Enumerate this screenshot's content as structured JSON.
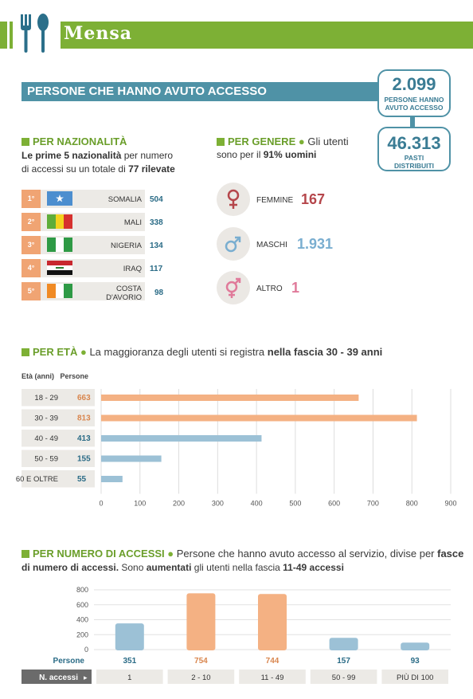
{
  "header": {
    "title": "Mensa"
  },
  "access": {
    "title": "PERSONE CHE HANNO AVUTO ACCESSO",
    "people_count": "2.099",
    "people_label_1": "PERSONE HANNO",
    "people_label_2": "AVUTO ACCESSO",
    "meals_count": "46.313",
    "meals_label_1": "PASTI",
    "meals_label_2": "DISTRIBUITI"
  },
  "nationality": {
    "title": "PER NAZIONALITÀ",
    "desc_1": "Le prime 5 nazionalità",
    "desc_2": " per numero",
    "desc_3": "di accessi su un totale di ",
    "desc_4": "77 rilevate",
    "rows": [
      {
        "rank": "1°",
        "name": "SOMALIA",
        "value": "504",
        "flag": "somalia-flag-icon"
      },
      {
        "rank": "2°",
        "name": "MALI",
        "value": "338",
        "flag": "mali-flag-icon"
      },
      {
        "rank": "3°",
        "name": "NIGERIA",
        "value": "134",
        "flag": "nigeria-flag-icon"
      },
      {
        "rank": "4°",
        "name": "IRAQ",
        "value": "117",
        "flag": "iraq-flag-icon"
      },
      {
        "rank": "5°",
        "name_1": "COSTA",
        "name_2": "D'AVORIO",
        "value": "98",
        "flag": "ivory-coast-flag-icon"
      }
    ]
  },
  "gender": {
    "title": "PER GENERE",
    "desc_1": "Gli utenti",
    "desc_2": "sono per il ",
    "desc_3": "91% uomini",
    "rows": [
      {
        "label": "FEMMINE",
        "value": "167",
        "color": "#b5464b",
        "icon": "female-icon"
      },
      {
        "label": "MASCHI",
        "value": "1.931",
        "color": "#7aaed0",
        "icon": "male-icon"
      },
      {
        "label": "ALTRO",
        "value": "1",
        "color": "#e07a9a",
        "icon": "other-gender-icon"
      }
    ]
  },
  "age": {
    "title": "PER ETÀ",
    "desc_1": "La maggioranza degli utenti si registra ",
    "desc_2": "nella fascia 30 - 39 anni",
    "col_age": "Età (anni)",
    "col_people": "Persone"
  },
  "accesses": {
    "title": "PER NUMERO DI ACCESSI",
    "desc_1": "Persone che hanno avuto accesso al servizio, divise per ",
    "desc_2": "fasce",
    "desc_3": "di numero di accessi.",
    "desc_4": " Sono ",
    "desc_5": "aumentati",
    "desc_6": " gli utenti nella fascia ",
    "desc_7": "11-49 accessi",
    "people_label": "Persone",
    "n_label": "N. accessi"
  },
  "chart_data": [
    {
      "type": "bar",
      "orientation": "horizontal",
      "categories": [
        "18 - 29",
        "30 - 39",
        "40 - 49",
        "50 - 59",
        "60 E OLTRE"
      ],
      "values": [
        663,
        813,
        413,
        155,
        55
      ],
      "xlim": [
        0,
        900
      ],
      "ticks": [
        0,
        100,
        200,
        300,
        400,
        500,
        600,
        700,
        800,
        900
      ],
      "colors": [
        "#f4b183",
        "#f4b183",
        "#9cc1d6",
        "#9cc1d6",
        "#9cc1d6"
      ],
      "value_colors": [
        "#d9864e",
        "#d9864e",
        "#2a6b86",
        "#2a6b86",
        "#2a6b86"
      ]
    },
    {
      "type": "bar",
      "orientation": "vertical",
      "categories": [
        "1",
        "2 - 10",
        "11 - 49",
        "50 - 99",
        "PIÙ DI 100"
      ],
      "values": [
        351,
        754,
        744,
        157,
        93
      ],
      "ylim": [
        0,
        800
      ],
      "ticks": [
        0,
        200,
        400,
        600,
        800
      ],
      "colors": [
        "#9cc1d6",
        "#f4b183",
        "#f4b183",
        "#9cc1d6",
        "#9cc1d6"
      ],
      "value_colors": [
        "#2a6b86",
        "#d9864e",
        "#d9864e",
        "#2a6b86",
        "#2a6b86"
      ]
    }
  ]
}
